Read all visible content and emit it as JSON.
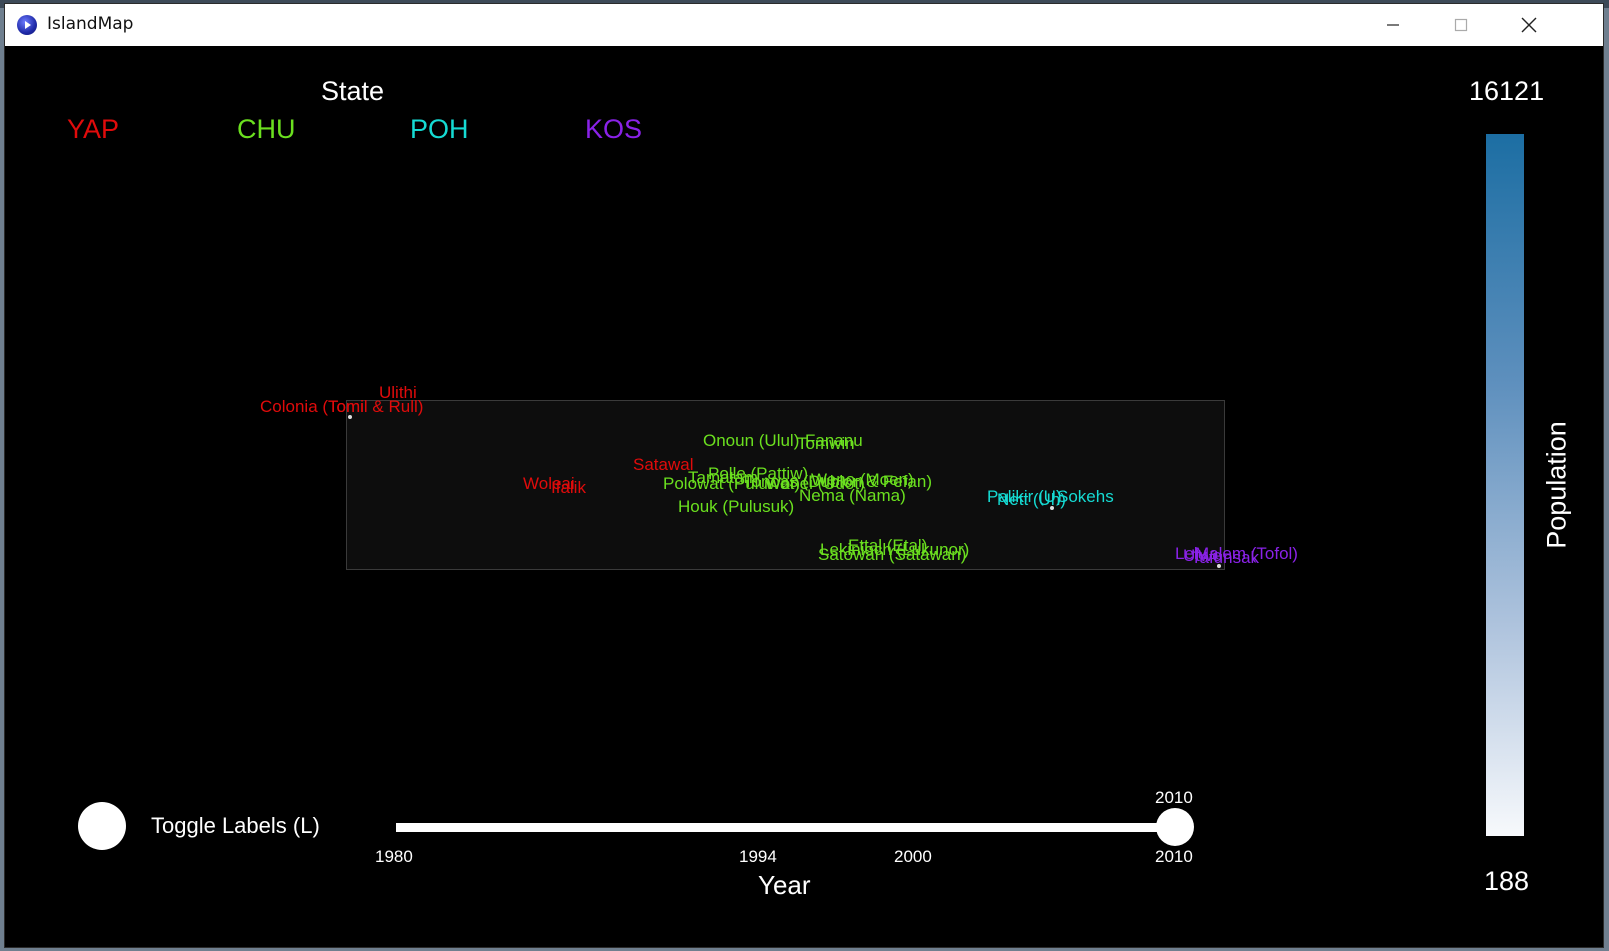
{
  "window": {
    "title": "IslandMap"
  },
  "legend": {
    "title": "State",
    "states": [
      {
        "label": "YAP",
        "color": "#e00b0b"
      },
      {
        "label": "CHU",
        "color": "#6be01f"
      },
      {
        "label": "POH",
        "color": "#15dbd3"
      },
      {
        "label": "KOS",
        "color": "#8a22e8"
      }
    ]
  },
  "islands": {
    "ulithi": "Ulithi",
    "colonia": "Colonia (Tomil & Rull)",
    "tomil": "Tomil",
    "woleai": "Woleai",
    "ifalik": "Ifalik",
    "satawal": "Satawal",
    "onoun": "Onoun (Ulul)",
    "fananu": "Fananu",
    "tomwin": "Tomwin",
    "polle": "Polle (Pattiw)",
    "tamatam": "Tamatam",
    "weno": "Weno (Moen)",
    "polowat": "Polowat (Puluwat)",
    "wonei": "Wonei (Udot)",
    "tonoas": "Tonoas (Dublon & Fefan)",
    "nema": "Nema (Nama)",
    "houk": "Houk (Pulusuk)",
    "lekinioch": "Lekinioch (Lukunor)",
    "ettal": "Ettal (Etal)",
    "satowan": "Satowan (Satawan)",
    "palikir": "Palikir (U)",
    "sokehs": "Sokehs",
    "nett": "Nett (Uh)",
    "lelu": "Lelu",
    "tafunsak": "Tafunsak",
    "utwe": "Utwe",
    "malem": "Malem (Tofol)"
  },
  "colorbar": {
    "title": "Population",
    "max": "16121",
    "min": "188",
    "max_value": 16121,
    "min_value": 188
  },
  "toggle": {
    "label": "Toggle Labels (L)"
  },
  "slider": {
    "value_label": "2010",
    "value": 2010,
    "min": 1980,
    "max": 2010,
    "ticks": [
      "1980",
      "1994",
      "2000",
      "2010"
    ],
    "axis_label": "Year"
  }
}
